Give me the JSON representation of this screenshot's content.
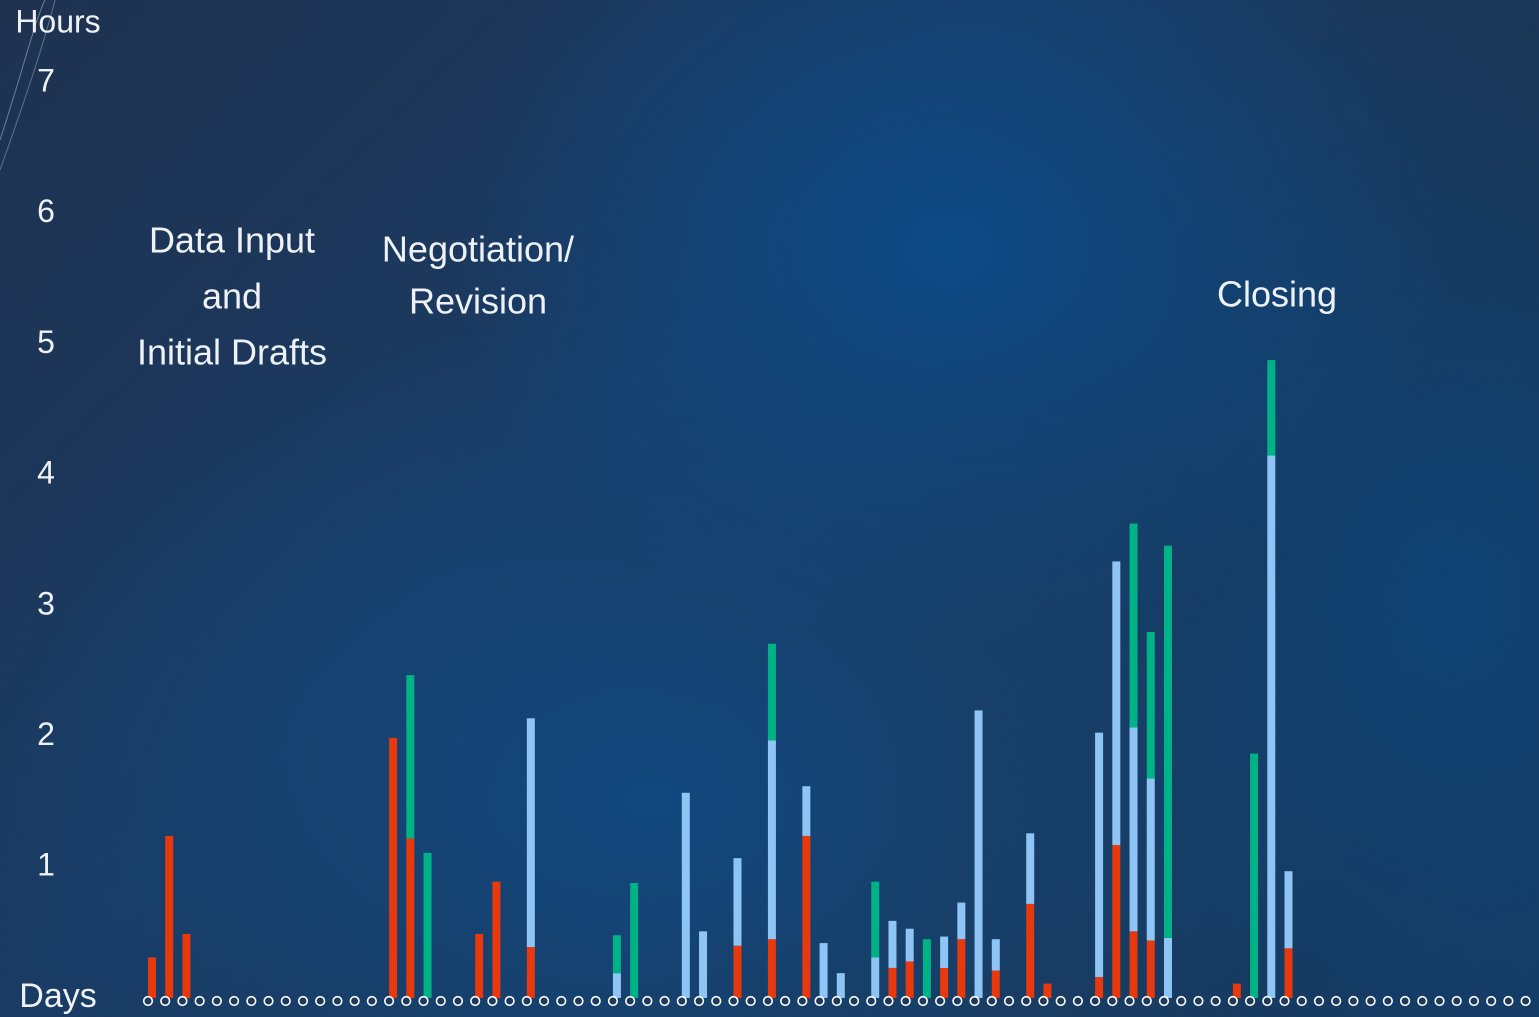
{
  "chart_data": {
    "type": "stacked_bar",
    "y_label": "Hours",
    "x_label": "Days",
    "annotations": [
      [
        "Data Input",
        "and",
        "Initial Drafts"
      ],
      [
        "Negotiation/",
        "Revision"
      ],
      [
        "Closing"
      ]
    ],
    "ylim": [
      0,
      7
    ],
    "yticks": [
      1,
      2,
      3,
      4,
      5,
      6,
      7
    ],
    "categories": [
      null,
      null,
      null,
      null,
      null,
      null,
      null,
      null,
      null,
      null,
      null,
      null,
      null,
      null,
      null,
      null,
      null,
      null,
      null,
      null,
      null,
      null,
      null,
      null,
      null,
      null,
      null,
      null,
      null,
      null,
      null,
      null,
      null,
      null,
      null,
      null,
      null,
      null,
      null,
      null,
      null,
      null,
      null,
      null,
      null,
      null,
      null,
      null,
      null,
      null,
      null,
      null,
      null,
      null,
      null,
      null,
      null,
      null,
      null,
      null,
      null,
      null,
      null,
      null,
      null,
      null,
      null,
      null,
      null,
      null,
      null,
      null,
      null,
      null,
      null,
      null,
      null,
      null,
      null,
      null,
      null
    ],
    "series": [
      {
        "color": "#e8380d",
        "values": [
          0.31,
          1.24,
          0.49,
          null,
          null,
          null,
          null,
          null,
          null,
          null,
          null,
          null,
          null,
          null,
          1.99,
          1.22,
          null,
          null,
          null,
          0.49,
          0.89,
          null,
          0.39,
          null,
          null,
          null,
          null,
          null,
          null,
          null,
          null,
          null,
          null,
          null,
          0.4,
          null,
          0.45,
          null,
          1.24,
          null,
          null,
          null,
          null,
          0.23,
          0.28,
          null,
          0.23,
          0.45,
          null,
          0.21,
          null,
          0.72,
          0.11,
          null,
          null,
          0.16,
          1.17,
          0.51,
          0.44,
          null,
          null,
          null,
          null,
          0.11,
          null,
          null,
          0.38,
          null,
          null,
          null,
          null,
          null,
          null,
          null,
          null,
          null,
          null,
          null,
          null,
          null,
          null
        ]
      },
      {
        "color": "#8ec5f5",
        "values": [
          null,
          null,
          null,
          null,
          null,
          null,
          null,
          null,
          null,
          null,
          null,
          null,
          null,
          null,
          null,
          null,
          null,
          null,
          null,
          null,
          null,
          null,
          1.75,
          null,
          null,
          null,
          null,
          0.19,
          null,
          null,
          null,
          1.57,
          0.51,
          null,
          0.67,
          null,
          1.52,
          null,
          0.38,
          0.42,
          0.19,
          null,
          0.31,
          0.36,
          0.25,
          null,
          0.24,
          0.28,
          2.2,
          0.24,
          null,
          0.54,
          null,
          null,
          null,
          1.87,
          2.17,
          1.56,
          1.24,
          0.46,
          null,
          null,
          null,
          null,
          null,
          4.15,
          0.59,
          null,
          null,
          null,
          null,
          null,
          null,
          null,
          null,
          null,
          null,
          null,
          null,
          null,
          null
        ]
      },
      {
        "color": "#00b386",
        "values": [
          null,
          null,
          null,
          null,
          null,
          null,
          null,
          null,
          null,
          null,
          null,
          null,
          null,
          null,
          null,
          1.25,
          1.11,
          null,
          null,
          null,
          null,
          null,
          null,
          null,
          null,
          null,
          null,
          0.29,
          0.88,
          null,
          null,
          null,
          null,
          null,
          null,
          null,
          0.74,
          null,
          null,
          null,
          null,
          null,
          0.58,
          null,
          null,
          0.45,
          null,
          null,
          null,
          null,
          null,
          null,
          null,
          null,
          null,
          null,
          null,
          1.56,
          1.12,
          3.0,
          null,
          null,
          null,
          null,
          1.87,
          0.73,
          null,
          null,
          null,
          null,
          null,
          null,
          null,
          null,
          null,
          null,
          null,
          null,
          null,
          null,
          null
        ]
      }
    ]
  }
}
